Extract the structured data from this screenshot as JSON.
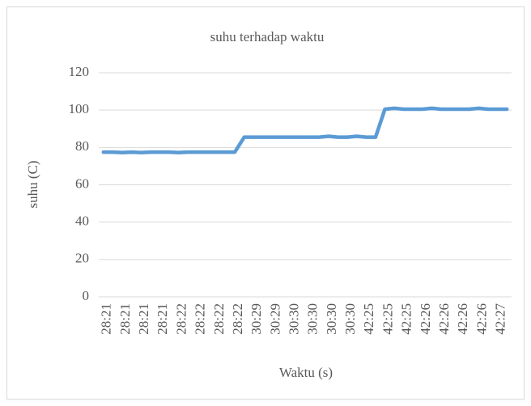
{
  "chart_data": {
    "type": "line",
    "title": "suhu terhadap waktu",
    "xlabel": "Waktu (s)",
    "ylabel": "suhu (C)",
    "categories": [
      "28:21",
      null,
      "28:21",
      null,
      "28:21",
      null,
      "28:21",
      null,
      "28:22",
      null,
      "28:22",
      null,
      "28:22",
      null,
      "28:22",
      null,
      "30:29",
      null,
      "30:29",
      null,
      "30:30",
      null,
      "30:30",
      null,
      "30:30",
      null,
      "30:30",
      null,
      "42:25",
      null,
      "42:25",
      null,
      "42:25",
      null,
      "42:26",
      null,
      "42:26",
      null,
      "42:26",
      null,
      "42:26",
      null,
      "42:27",
      null
    ],
    "series": [
      {
        "name": "suhu",
        "color": "#5b9bd5",
        "values": [
          77.5,
          77.5,
          77.3,
          77.5,
          77.3,
          77.5,
          77.5,
          77.5,
          77.3,
          77.5,
          77.5,
          77.5,
          77.5,
          77.5,
          77.5,
          85.5,
          85.5,
          85.5,
          85.5,
          85.5,
          85.5,
          85.5,
          85.5,
          85.5,
          86,
          85.5,
          85.5,
          86,
          85.5,
          85.5,
          100.5,
          101,
          100.5,
          100.5,
          100.5,
          101,
          100.5,
          100.5,
          100.5,
          100.5,
          101,
          100.5,
          100.5,
          100.5
        ]
      }
    ],
    "ylim": [
      0,
      120
    ],
    "yticks": [
      0,
      20,
      40,
      60,
      80,
      100,
      120
    ],
    "grid": true,
    "legend": false
  }
}
